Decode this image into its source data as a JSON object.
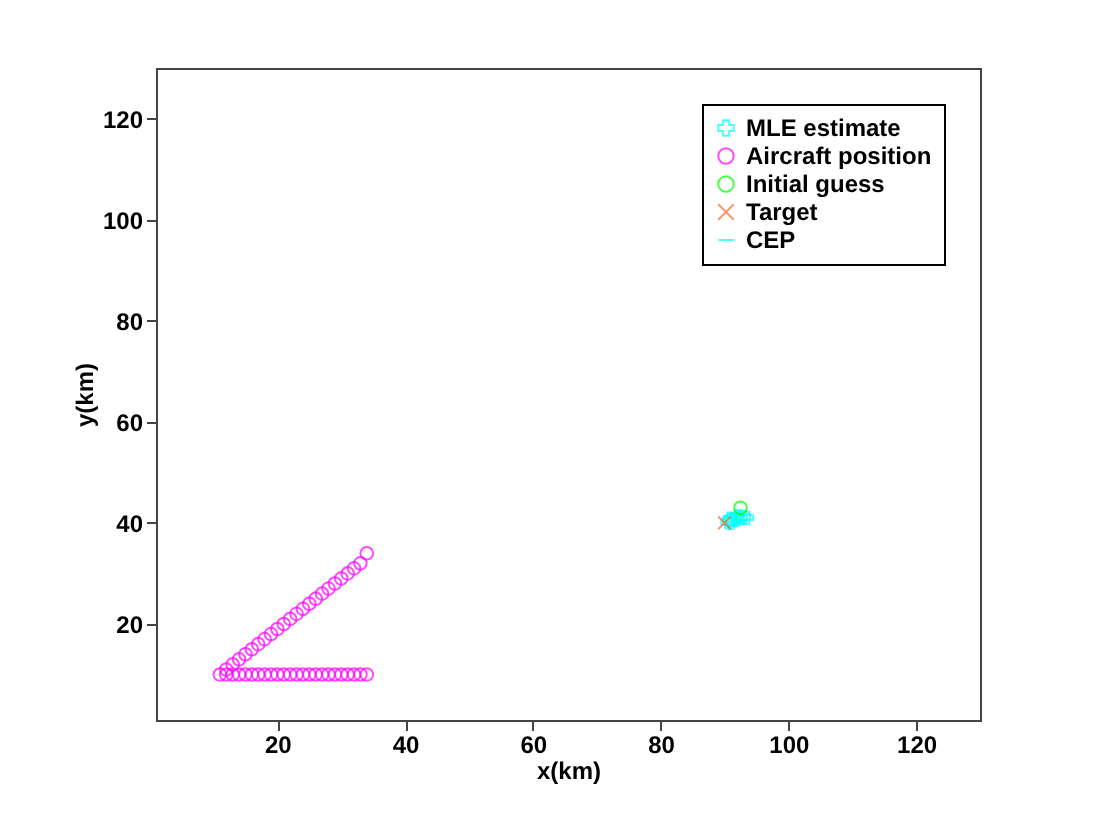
{
  "chart_data": {
    "type": "scatter",
    "xlabel": "x(km)",
    "ylabel": "y(km)",
    "xlim": [
      1,
      130
    ],
    "ylim": [
      1,
      130
    ],
    "xticks": [
      20,
      40,
      60,
      80,
      100,
      120
    ],
    "yticks": [
      20,
      40,
      60,
      80,
      100,
      120
    ],
    "grid": false,
    "legend": "top right",
    "series": [
      {
        "name": "MLE estimate",
        "marker": "cross",
        "color": "#00ffff",
        "x": [
          90.5,
          91,
          91.5,
          92,
          92.5,
          93,
          91,
          90.8,
          92,
          93.5
        ],
        "values": [
          40.2,
          40.5,
          40.7,
          40.8,
          41,
          41.2,
          40,
          40.8,
          41.3,
          41
        ]
      },
      {
        "name": "Aircraft position",
        "marker": "circle",
        "color": "#ff00ff",
        "x": [
          11,
          12,
          13,
          14,
          15,
          16,
          17,
          18,
          19,
          20,
          21,
          22,
          23,
          24,
          25,
          26,
          27,
          28,
          29,
          30,
          31,
          32,
          33,
          34,
          12,
          13,
          14,
          15,
          16,
          17,
          18,
          19,
          20,
          21,
          22,
          23,
          24,
          25,
          26,
          27,
          28,
          29,
          30,
          31,
          32,
          33,
          34
        ],
        "values": [
          10,
          11,
          12,
          13,
          14,
          15,
          16,
          17,
          18,
          19,
          20,
          21,
          22,
          23,
          24,
          25,
          26,
          27,
          28,
          29,
          30,
          31,
          32,
          34,
          10,
          10,
          10,
          10,
          10,
          10,
          10,
          10,
          10,
          10,
          10,
          10,
          10,
          10,
          10,
          10,
          10,
          10,
          10,
          10,
          10,
          10,
          10
        ]
      },
      {
        "name": "Initial guess",
        "marker": "circle",
        "color": "#00ff00",
        "x": [
          92.5
        ],
        "values": [
          43
        ]
      },
      {
        "name": "Target",
        "marker": "x",
        "color": "#ff6633",
        "x": [
          90
        ],
        "values": [
          40
        ]
      },
      {
        "name": "CEP",
        "type": "line",
        "color": "#00ffff"
      }
    ]
  }
}
